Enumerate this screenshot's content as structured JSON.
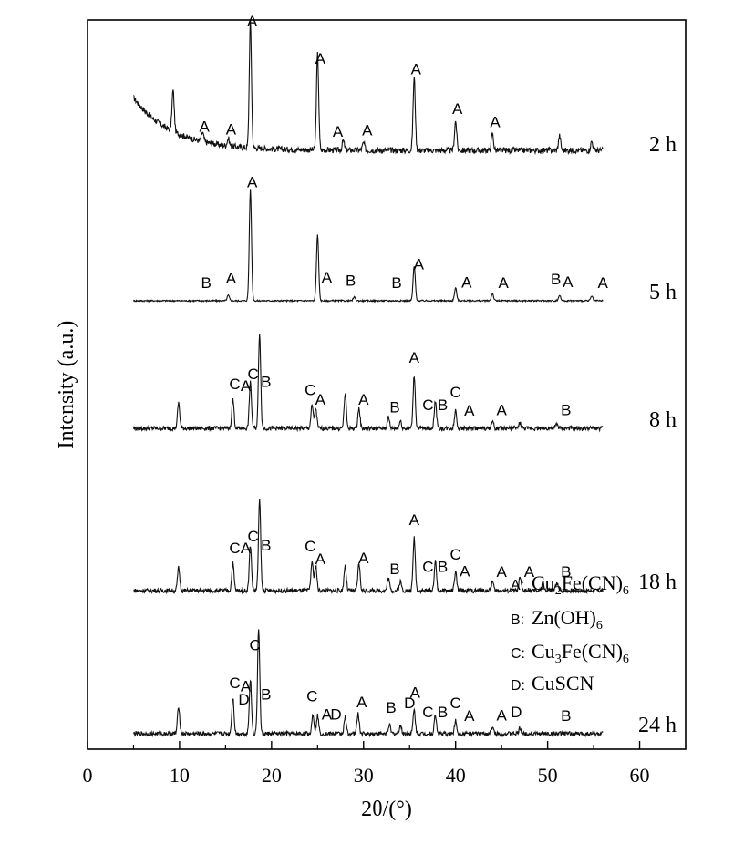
{
  "chart_data": {
    "type": "line",
    "xlabel": "2θ/(°)",
    "ylabel": "Intensity (a.u.)",
    "xlim": [
      0,
      65
    ],
    "x_ticks": [
      0,
      10,
      20,
      30,
      40,
      50,
      60
    ],
    "series": [
      {
        "name": "2 h",
        "x_start": 5,
        "x_end": 56,
        "background": "decay",
        "peaks": [
          {
            "x": 9.3,
            "h": 45
          },
          {
            "x": 12.5,
            "h": 10
          },
          {
            "x": 15.3,
            "h": 8
          },
          {
            "x": 17.7,
            "h": 138
          },
          {
            "x": 25.0,
            "h": 105
          },
          {
            "x": 27.8,
            "h": 10
          },
          {
            "x": 30.0,
            "h": 8
          },
          {
            "x": 35.5,
            "h": 80
          },
          {
            "x": 40.0,
            "h": 32
          },
          {
            "x": 44.0,
            "h": 18
          },
          {
            "x": 51.3,
            "h": 16
          },
          {
            "x": 54.8,
            "h": 10
          }
        ],
        "labels": [
          {
            "text": "A",
            "x": 17.9
          },
          {
            "text": "A",
            "x": 25.3
          },
          {
            "text": "A",
            "x": 35.7
          },
          {
            "text": "A",
            "x": 40.2
          },
          {
            "text": "A",
            "x": 44.3
          },
          {
            "text": "A",
            "x": 12.7
          },
          {
            "text": "A",
            "x": 15.6
          },
          {
            "text": "A",
            "x": 27.2
          },
          {
            "text": "A",
            "x": 30.4
          }
        ]
      },
      {
        "name": "5 h",
        "x_start": 5,
        "x_end": 56,
        "background": "flat",
        "peaks": [
          {
            "x": 15.3,
            "h": 6
          },
          {
            "x": 17.7,
            "h": 122
          },
          {
            "x": 25.0,
            "h": 72
          },
          {
            "x": 29.0,
            "h": 4
          },
          {
            "x": 35.5,
            "h": 38
          },
          {
            "x": 40.0,
            "h": 14
          },
          {
            "x": 44.0,
            "h": 8
          },
          {
            "x": 51.3,
            "h": 6
          },
          {
            "x": 54.8,
            "h": 5
          }
        ],
        "labels": [
          {
            "text": "A",
            "x": 17.9
          },
          {
            "text": "A",
            "x": 26.0
          },
          {
            "text": "A",
            "x": 36.0
          },
          {
            "text": "A",
            "x": 41.2
          },
          {
            "text": "A",
            "x": 45.2
          },
          {
            "text": "A",
            "x": 15.6
          },
          {
            "text": "A",
            "x": 52.2
          },
          {
            "text": "A",
            "x": 56.0
          },
          {
            "text": "B",
            "x": 12.9
          },
          {
            "text": "B",
            "x": 28.6
          },
          {
            "text": "B",
            "x": 33.6
          },
          {
            "text": "B",
            "x": 50.9
          }
        ]
      },
      {
        "name": "8 h",
        "x_start": 5,
        "x_end": 56,
        "background": "flat",
        "peaks": [
          {
            "x": 9.9,
            "h": 28
          },
          {
            "x": 15.8,
            "h": 32
          },
          {
            "x": 17.7,
            "h": 50
          },
          {
            "x": 18.7,
            "h": 105
          },
          {
            "x": 24.4,
            "h": 25
          },
          {
            "x": 24.8,
            "h": 22
          },
          {
            "x": 28.0,
            "h": 38
          },
          {
            "x": 29.5,
            "h": 22
          },
          {
            "x": 32.7,
            "h": 12
          },
          {
            "x": 34.0,
            "h": 8
          },
          {
            "x": 35.5,
            "h": 58
          },
          {
            "x": 37.8,
            "h": 30
          },
          {
            "x": 40.0,
            "h": 20
          },
          {
            "x": 44.0,
            "h": 8
          },
          {
            "x": 47.0,
            "h": 6
          },
          {
            "x": 51.0,
            "h": 5
          }
        ],
        "labels": [
          {
            "text": "C",
            "x": 16.0
          },
          {
            "text": "A",
            "x": 17.2
          },
          {
            "text": "C",
            "x": 18.0
          },
          {
            "text": "B",
            "x": 19.4
          },
          {
            "text": "C",
            "x": 24.2
          },
          {
            "text": "A",
            "x": 25.3
          },
          {
            "text": "A",
            "x": 30.0
          },
          {
            "text": "B",
            "x": 33.4
          },
          {
            "text": "A",
            "x": 35.5
          },
          {
            "text": "C",
            "x": 37.0
          },
          {
            "text": "B",
            "x": 38.6
          },
          {
            "text": "C",
            "x": 40.0
          },
          {
            "text": "A",
            "x": 41.5
          },
          {
            "text": "A",
            "x": 45.0
          },
          {
            "text": "B",
            "x": 52.0
          }
        ]
      },
      {
        "name": "18 h",
        "x_start": 5,
        "x_end": 56,
        "background": "flat",
        "peaks": [
          {
            "x": 9.9,
            "h": 25
          },
          {
            "x": 15.8,
            "h": 30
          },
          {
            "x": 17.7,
            "h": 50
          },
          {
            "x": 18.7,
            "h": 100
          },
          {
            "x": 24.4,
            "h": 32
          },
          {
            "x": 24.8,
            "h": 28
          },
          {
            "x": 28.0,
            "h": 28
          },
          {
            "x": 29.5,
            "h": 30
          },
          {
            "x": 32.7,
            "h": 14
          },
          {
            "x": 34.0,
            "h": 10
          },
          {
            "x": 35.5,
            "h": 58
          },
          {
            "x": 37.8,
            "h": 32
          },
          {
            "x": 40.0,
            "h": 20
          },
          {
            "x": 44.0,
            "h": 10
          },
          {
            "x": 47.0,
            "h": 14
          },
          {
            "x": 49.5,
            "h": 8
          },
          {
            "x": 51.0,
            "h": 9
          }
        ],
        "labels": [
          {
            "text": "C",
            "x": 16.0
          },
          {
            "text": "A",
            "x": 17.2
          },
          {
            "text": "C",
            "x": 18.0
          },
          {
            "text": "B",
            "x": 19.4
          },
          {
            "text": "C",
            "x": 24.2
          },
          {
            "text": "A",
            "x": 25.3
          },
          {
            "text": "A",
            "x": 30.0
          },
          {
            "text": "B",
            "x": 33.4
          },
          {
            "text": "A",
            "x": 35.5
          },
          {
            "text": "C",
            "x": 37.0
          },
          {
            "text": "B",
            "x": 38.6
          },
          {
            "text": "C",
            "x": 40.0
          },
          {
            "text": "A",
            "x": 41.0
          },
          {
            "text": "A",
            "x": 45.0
          },
          {
            "text": "A",
            "x": 48.0
          },
          {
            "text": "B",
            "x": 52.0
          }
        ]
      },
      {
        "name": "24 h",
        "x_start": 5,
        "x_end": 56,
        "background": "flat",
        "peaks": [
          {
            "x": 9.9,
            "h": 30
          },
          {
            "x": 15.8,
            "h": 40
          },
          {
            "x": 17.7,
            "h": 60
          },
          {
            "x": 18.6,
            "h": 115
          },
          {
            "x": 24.5,
            "h": 22
          },
          {
            "x": 25.0,
            "h": 20
          },
          {
            "x": 28.0,
            "h": 18
          },
          {
            "x": 29.4,
            "h": 22
          },
          {
            "x": 32.8,
            "h": 10
          },
          {
            "x": 34.0,
            "h": 9
          },
          {
            "x": 35.5,
            "h": 26
          },
          {
            "x": 37.8,
            "h": 20
          },
          {
            "x": 40.0,
            "h": 14
          },
          {
            "x": 44.0,
            "h": 7
          },
          {
            "x": 47.0,
            "h": 6
          }
        ],
        "labels": [
          {
            "text": "C",
            "x": 16.0
          },
          {
            "text": "A",
            "x": 17.2
          },
          {
            "text": "C",
            "x": 18.2
          },
          {
            "text": "B",
            "x": 19.4
          },
          {
            "text": "D",
            "x": 17.0
          },
          {
            "text": "C",
            "x": 24.4
          },
          {
            "text": "A",
            "x": 26.0
          },
          {
            "text": "D",
            "x": 27.0
          },
          {
            "text": "A",
            "x": 29.8
          },
          {
            "text": "B",
            "x": 33.0
          },
          {
            "text": "D",
            "x": 35.0
          },
          {
            "text": "A",
            "x": 35.6
          },
          {
            "text": "C",
            "x": 37.0
          },
          {
            "text": "B",
            "x": 38.6
          },
          {
            "text": "C",
            "x": 40.0
          },
          {
            "text": "A",
            "x": 41.5
          },
          {
            "text": "A",
            "x": 45.0
          },
          {
            "text": "D",
            "x": 46.6
          },
          {
            "text": "B",
            "x": 52.0
          }
        ]
      }
    ],
    "legend": [
      {
        "key": "A:",
        "formula": [
          [
            "Cu",
            ""
          ],
          [
            "2",
            "sub"
          ],
          [
            "Fe(CN)",
            ""
          ],
          [
            "6",
            "sub"
          ]
        ]
      },
      {
        "key": "B:",
        "formula": [
          [
            "Zn(OH)",
            ""
          ],
          [
            "6",
            "sub"
          ]
        ]
      },
      {
        "key": "C:",
        "formula": [
          [
            "Cu",
            ""
          ],
          [
            "3",
            "sub"
          ],
          [
            "Fe(CN)",
            ""
          ],
          [
            "6",
            "sub"
          ]
        ]
      },
      {
        "key": "D:",
        "formula": [
          [
            "CuSCN",
            ""
          ]
        ]
      }
    ],
    "legend_position": "bottom-right",
    "grid": false
  }
}
